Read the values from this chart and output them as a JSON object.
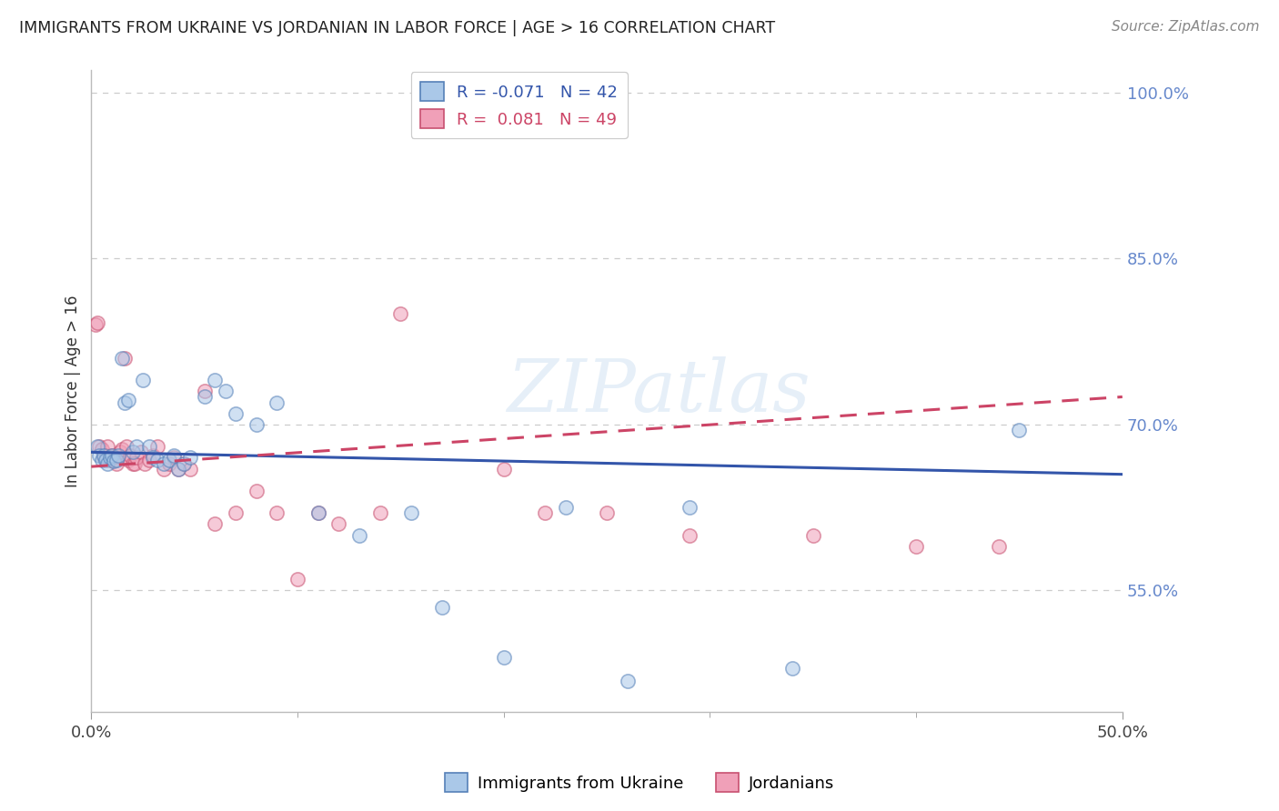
{
  "title": "IMMIGRANTS FROM UKRAINE VS JORDANIAN IN LABOR FORCE | AGE > 16 CORRELATION CHART",
  "source": "Source: ZipAtlas.com",
  "ylabel": "In Labor Force | Age > 16",
  "xlim": [
    0.0,
    0.5
  ],
  "ylim": [
    0.44,
    1.02
  ],
  "ytick_labels": [
    "55.0%",
    "70.0%",
    "85.0%",
    "100.0%"
  ],
  "ytick_values": [
    0.55,
    0.7,
    0.85,
    1.0
  ],
  "xtick_labels": [
    "0.0%",
    "50.0%"
  ],
  "xtick_values": [
    0.0,
    0.5
  ],
  "xtick_minor_values": [
    0.1,
    0.2,
    0.3,
    0.4
  ],
  "watermark": "ZIPatlas",
  "ukraine_scatter_x": [
    0.003,
    0.004,
    0.005,
    0.006,
    0.007,
    0.008,
    0.009,
    0.01,
    0.011,
    0.012,
    0.013,
    0.015,
    0.016,
    0.018,
    0.02,
    0.022,
    0.025,
    0.028,
    0.03,
    0.032,
    0.035,
    0.038,
    0.04,
    0.042,
    0.045,
    0.048,
    0.055,
    0.06,
    0.065,
    0.07,
    0.08,
    0.09,
    0.11,
    0.13,
    0.155,
    0.17,
    0.2,
    0.23,
    0.26,
    0.29,
    0.34,
    0.45
  ],
  "ukraine_scatter_y": [
    0.68,
    0.672,
    0.668,
    0.672,
    0.668,
    0.665,
    0.67,
    0.672,
    0.667,
    0.668,
    0.672,
    0.76,
    0.72,
    0.722,
    0.675,
    0.68,
    0.74,
    0.68,
    0.67,
    0.668,
    0.665,
    0.668,
    0.672,
    0.66,
    0.665,
    0.67,
    0.725,
    0.74,
    0.73,
    0.71,
    0.7,
    0.72,
    0.62,
    0.6,
    0.62,
    0.535,
    0.49,
    0.625,
    0.468,
    0.625,
    0.48,
    0.695
  ],
  "jordan_scatter_x": [
    0.002,
    0.003,
    0.004,
    0.005,
    0.006,
    0.007,
    0.008,
    0.009,
    0.01,
    0.011,
    0.012,
    0.013,
    0.014,
    0.015,
    0.016,
    0.017,
    0.018,
    0.019,
    0.02,
    0.021,
    0.022,
    0.024,
    0.026,
    0.028,
    0.03,
    0.032,
    0.035,
    0.038,
    0.04,
    0.042,
    0.045,
    0.048,
    0.055,
    0.06,
    0.07,
    0.08,
    0.09,
    0.1,
    0.11,
    0.12,
    0.14,
    0.15,
    0.2,
    0.22,
    0.25,
    0.29,
    0.35,
    0.4,
    0.44
  ],
  "jordan_scatter_y": [
    0.79,
    0.792,
    0.68,
    0.678,
    0.67,
    0.672,
    0.68,
    0.668,
    0.672,
    0.668,
    0.665,
    0.67,
    0.675,
    0.678,
    0.76,
    0.68,
    0.668,
    0.672,
    0.665,
    0.665,
    0.67,
    0.675,
    0.665,
    0.668,
    0.672,
    0.68,
    0.66,
    0.665,
    0.67,
    0.66,
    0.665,
    0.66,
    0.73,
    0.61,
    0.62,
    0.64,
    0.62,
    0.56,
    0.62,
    0.61,
    0.62,
    0.8,
    0.66,
    0.62,
    0.62,
    0.6,
    0.6,
    0.59,
    0.59
  ],
  "ukraine_color": "#aac8e8",
  "ukraine_edge_color": "#5580b8",
  "jordan_color": "#f0a0b8",
  "jordan_edge_color": "#c85070",
  "ukraine_trend_color": "#3355aa",
  "jordan_trend_color": "#cc4466",
  "ukraine_trend_x0": 0.0,
  "ukraine_trend_y0": 0.675,
  "ukraine_trend_x1": 0.5,
  "ukraine_trend_y1": 0.655,
  "jordan_trend_x0": 0.0,
  "jordan_trend_y0": 0.662,
  "jordan_trend_x1": 0.5,
  "jordan_trend_y1": 0.725,
  "background_color": "#ffffff",
  "grid_color": "#cccccc",
  "title_color": "#222222",
  "source_color": "#888888",
  "axis_label_color": "#6688cc",
  "marker_size": 11,
  "marker_alpha": 0.55,
  "legend_R_ukraine": "R = -0.071",
  "legend_N_ukraine": "N = 42",
  "legend_R_jordan": "R =  0.081",
  "legend_N_jordan": "N = 49",
  "bottom_legend_ukraine": "Immigrants from Ukraine",
  "bottom_legend_jordan": "Jordanians"
}
